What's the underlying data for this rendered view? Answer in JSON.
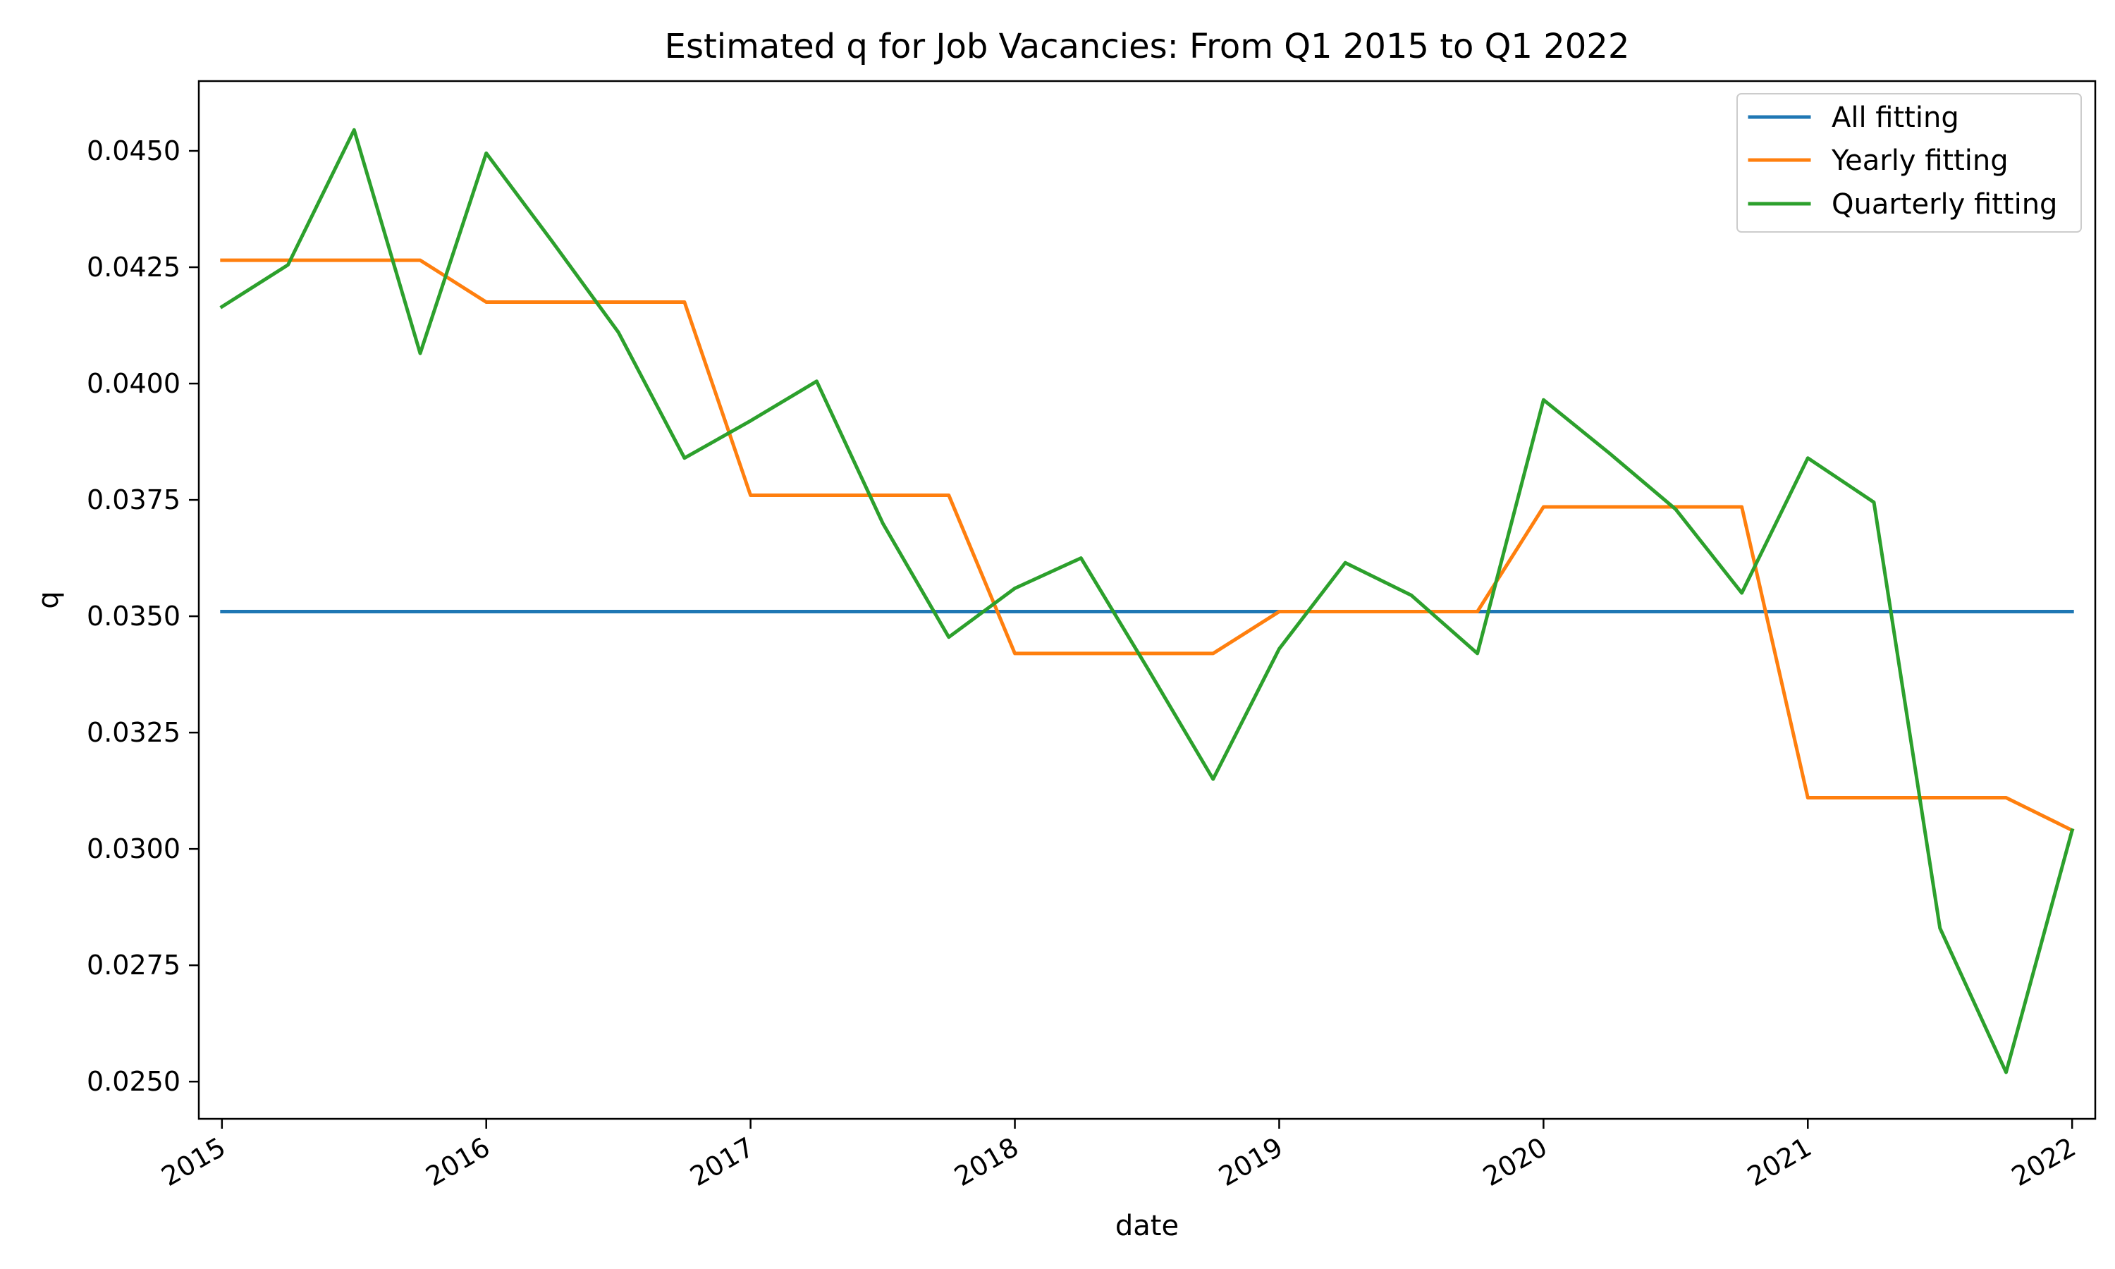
{
  "chart_data": {
    "type": "line",
    "title": "Estimated q for Job Vacancies: From Q1 2015 to Q1 2022",
    "xlabel": "date",
    "ylabel": "q",
    "x": [
      "2015Q1",
      "2015Q2",
      "2015Q3",
      "2015Q4",
      "2016Q1",
      "2016Q2",
      "2016Q3",
      "2016Q4",
      "2017Q1",
      "2017Q2",
      "2017Q3",
      "2017Q4",
      "2018Q1",
      "2018Q2",
      "2018Q3",
      "2018Q4",
      "2019Q1",
      "2019Q2",
      "2019Q3",
      "2019Q4",
      "2020Q1",
      "2020Q2",
      "2020Q3",
      "2020Q4",
      "2021Q1",
      "2021Q2",
      "2021Q3",
      "2021Q4",
      "2022Q1"
    ],
    "x_ticks": [
      "2015",
      "2016",
      "2017",
      "2018",
      "2019",
      "2020",
      "2021",
      "2022"
    ],
    "y_ticks": [
      "0.0250",
      "0.0275",
      "0.0300",
      "0.0325",
      "0.0350",
      "0.0375",
      "0.0400",
      "0.0425",
      "0.0450"
    ],
    "ylim": [
      0.0242,
      0.0465
    ],
    "xlim": [
      -0.35,
      28.35
    ],
    "grid": false,
    "legend_position": "top-right",
    "series": [
      {
        "name": "All fitting",
        "color": "#1f77b4",
        "values": [
          0.0351,
          0.0351,
          0.0351,
          0.0351,
          0.0351,
          0.0351,
          0.0351,
          0.0351,
          0.0351,
          0.0351,
          0.0351,
          0.0351,
          0.0351,
          0.0351,
          0.0351,
          0.0351,
          0.0351,
          0.0351,
          0.0351,
          0.0351,
          0.0351,
          0.0351,
          0.0351,
          0.0351,
          0.0351,
          0.0351,
          0.0351,
          0.0351,
          0.0351
        ]
      },
      {
        "name": "Yearly fitting",
        "color": "#ff7f0e",
        "values": [
          0.04265,
          0.04265,
          0.04265,
          0.04265,
          0.04175,
          0.04175,
          0.04175,
          0.04175,
          0.0376,
          0.0376,
          0.0376,
          0.0376,
          0.0342,
          0.0342,
          0.0342,
          0.0342,
          0.0351,
          0.0351,
          0.0351,
          0.0351,
          0.03735,
          0.03735,
          0.03735,
          0.03735,
          0.0311,
          0.0311,
          0.0311,
          0.0311,
          0.0304
        ]
      },
      {
        "name": "Quarterly fitting",
        "color": "#2ca02c",
        "values": [
          0.04165,
          0.04255,
          0.04545,
          0.04065,
          0.04495,
          0.04305,
          0.0411,
          0.0384,
          0.0392,
          0.04005,
          0.037,
          0.03455,
          0.0356,
          0.03625,
          0.0339,
          0.0315,
          0.0343,
          0.03615,
          0.03545,
          0.0342,
          0.03965,
          0.0385,
          0.0373,
          0.0355,
          0.0384,
          0.03745,
          0.0283,
          0.0252,
          0.0304
        ]
      }
    ]
  }
}
